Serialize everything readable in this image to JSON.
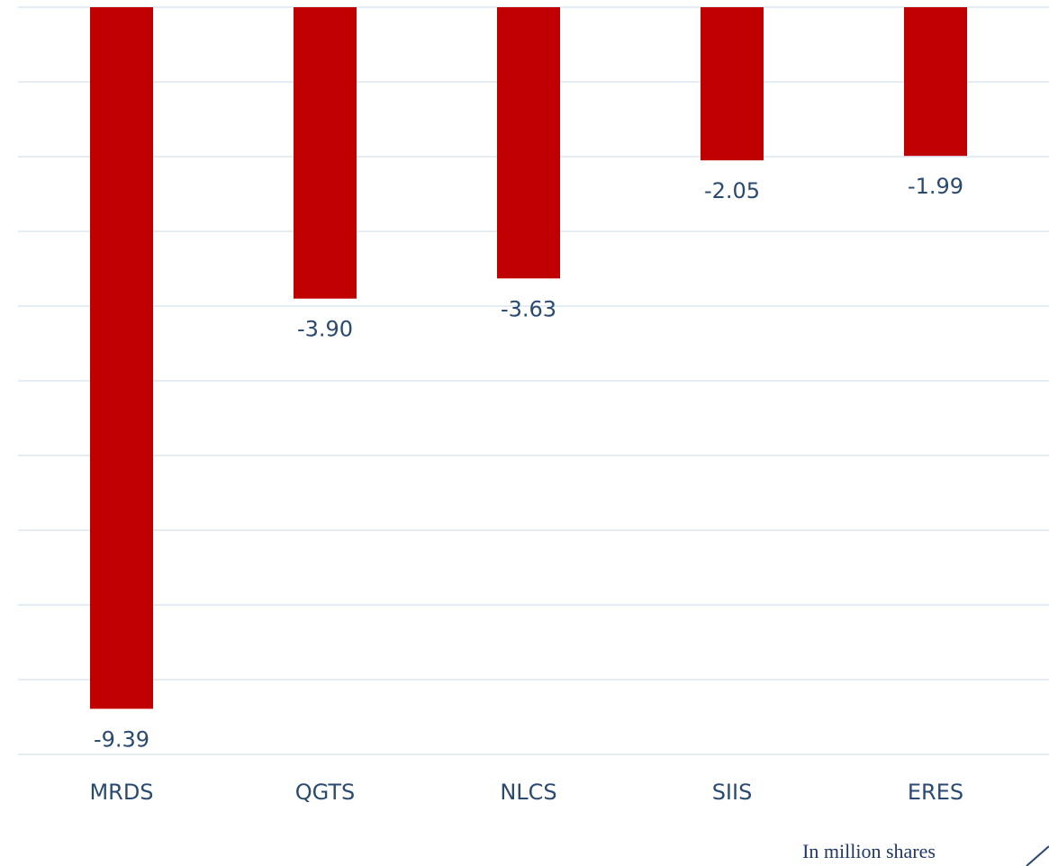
{
  "chart_data": {
    "type": "bar",
    "categories": [
      "MRDS",
      "QGTS",
      "NLCS",
      "SIIS",
      "ERES"
    ],
    "values": [
      -9.39,
      -3.9,
      -3.63,
      -2.05,
      -1.99
    ],
    "value_labels": [
      "-9.39",
      "-3.90",
      "-3.63",
      "-2.05",
      "-1.99"
    ],
    "color": "#c00000",
    "ylim": [
      -10,
      0
    ],
    "yticks": [
      -10,
      -9,
      -8,
      -7,
      -6,
      -5,
      -4,
      -3,
      -2,
      -1,
      0
    ],
    "grid": true,
    "annotation": "In million shares"
  }
}
